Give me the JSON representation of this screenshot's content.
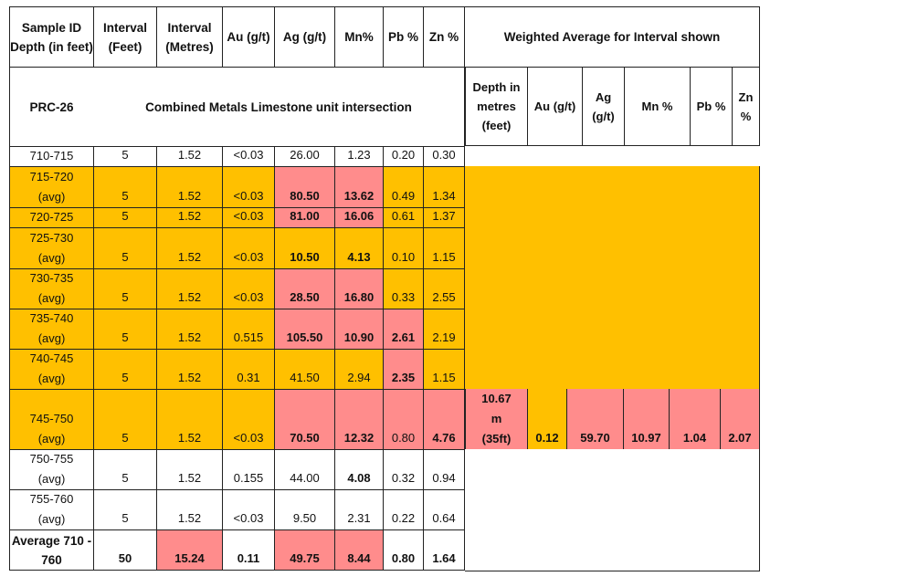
{
  "header": {
    "sample_id": "Sample ID Depth (in feet)",
    "interval_feet": "Interval (Feet)",
    "interval_metres": "Interval (Metres)",
    "au": "Au (g/t)",
    "ag": "Ag (g/t)",
    "mn": "Mn%",
    "pb": "Pb %",
    "zn": "Zn %",
    "weighted_title": "Weighted Average for Interval shown"
  },
  "hole": {
    "id": "PRC-26",
    "description": "Combined Metals Limestone unit intersection"
  },
  "weighted_header": {
    "depth": "Depth in metres (feet)",
    "au": "Au (g/t)",
    "ag": "Ag (g/t)",
    "mn": "Mn %",
    "pb": "Pb %",
    "zn": "Zn %"
  },
  "rows": [
    {
      "depth": "710-715",
      "avg": "",
      "feet": "5",
      "metres": "1.52",
      "au": "<0.03",
      "ag": "26.00",
      "mn": "1.23",
      "pb": "0.20",
      "zn": "0.30"
    },
    {
      "depth": "715-720",
      "avg": "(avg)",
      "feet": "5",
      "metres": "1.52",
      "au": "<0.03",
      "ag": "80.50",
      "mn": "13.62",
      "pb": "0.49",
      "zn": "1.34"
    },
    {
      "depth": "720-725",
      "avg": "",
      "feet": "5",
      "metres": "1.52",
      "au": "<0.03",
      "ag": "81.00",
      "mn": "16.06",
      "pb": "0.61",
      "zn": "1.37"
    },
    {
      "depth": "725-730",
      "avg": "(avg)",
      "feet": "5",
      "metres": "1.52",
      "au": "<0.03",
      "ag": "10.50",
      "mn": "4.13",
      "pb": "0.10",
      "zn": "1.15"
    },
    {
      "depth": "730-735",
      "avg": "(avg)",
      "feet": "5",
      "metres": "1.52",
      "au": "<0.03",
      "ag": "28.50",
      "mn": "16.80",
      "pb": "0.33",
      "zn": "2.55"
    },
    {
      "depth": "735-740",
      "avg": "(avg)",
      "feet": "5",
      "metres": "1.52",
      "au": "0.515",
      "ag": "105.50",
      "mn": "10.90",
      "pb": "2.61",
      "zn": "2.19"
    },
    {
      "depth": "740-745",
      "avg": "(avg)",
      "feet": "5",
      "metres": "1.52",
      "au": "0.31",
      "ag": "41.50",
      "mn": "2.94",
      "pb": "2.35",
      "zn": "1.15"
    },
    {
      "depth": "745-750",
      "avg": "(avg)",
      "feet": "5",
      "metres": "1.52",
      "au": "<0.03",
      "ag": "70.50",
      "mn": "12.32",
      "pb": "0.80",
      "zn": "4.76"
    },
    {
      "depth": "750-755",
      "avg": "(avg)",
      "feet": "5",
      "metres": "1.52",
      "au": "0.155",
      "ag": "44.00",
      "mn": "4.08",
      "pb": "0.32",
      "zn": "0.94"
    },
    {
      "depth": "755-760",
      "avg": "(avg)",
      "feet": "5",
      "metres": "1.52",
      "au": "<0.03",
      "ag": "9.50",
      "mn": "2.31",
      "pb": "0.22",
      "zn": "0.64"
    }
  ],
  "average": {
    "label": "Average 710 - 760",
    "feet": "50",
    "metres": "15.24",
    "au": "0.11",
    "ag": "49.75",
    "mn": "8.44",
    "pb": "0.80",
    "zn": "1.64"
  },
  "weighted": {
    "depth_m": "10.67 m",
    "depth_ft": "(35ft)",
    "au": "0.12",
    "ag": "59.70",
    "mn": "10.97",
    "pb": "1.04",
    "zn": "2.07"
  },
  "colors": {
    "highlight_orange": "#ffc000",
    "highlight_pink": "#ff8c8c"
  }
}
